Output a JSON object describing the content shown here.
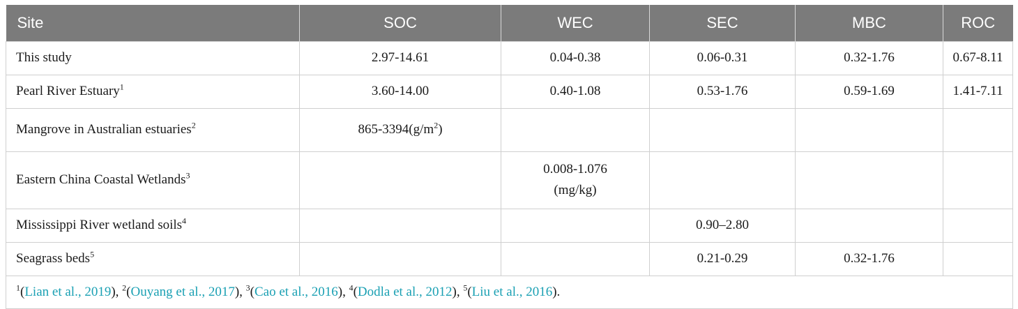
{
  "headers": [
    "Site",
    "SOC",
    "WEC",
    "SEC",
    "MBC",
    "ROC"
  ],
  "rows": [
    {
      "site": "This study",
      "site_sup": "",
      "soc": "2.97-14.61",
      "wec": "0.04-0.38",
      "sec": "0.06-0.31",
      "mbc": "0.32-1.76",
      "roc": "0.67-8.11"
    },
    {
      "site": "Pearl River Estuary",
      "site_sup": "1",
      "soc": "3.60-14.00",
      "wec": "0.40-1.08",
      "sec": "0.53-1.76",
      "mbc": "0.59-1.69",
      "roc": "1.41-7.11"
    },
    {
      "site": "Mangrove in Australian estuaries",
      "site_sup": "2",
      "soc_main": "865-3394(g/m",
      "soc_sup": "2",
      "soc_end": ")",
      "wec": "",
      "sec": "",
      "mbc": "",
      "roc": ""
    },
    {
      "site": "Eastern China Coastal Wetlands",
      "site_sup": "3",
      "soc": "",
      "wec_line1": "0.008-1.076",
      "wec_line2": "(mg/kg)",
      "sec": "",
      "mbc": "",
      "roc": ""
    },
    {
      "site": "Mississippi River wetland soils",
      "site_sup": "4",
      "soc": "",
      "wec": "",
      "sec": "0.90–2.80",
      "mbc": "",
      "roc": ""
    },
    {
      "site": "Seagrass beds",
      "site_sup": "5",
      "soc": "",
      "wec": "",
      "sec": "0.21-0.29",
      "mbc": "0.32-1.76",
      "roc": ""
    }
  ],
  "footnote": {
    "refs": [
      {
        "num": "1",
        "open": "(",
        "cite": "Lian et al., 2019",
        "close": "), "
      },
      {
        "num": "2",
        "open": "(",
        "cite": "Ouyang et al., 2017",
        "close": "), "
      },
      {
        "num": "3",
        "open": "(",
        "cite": "Cao et al., 2016",
        "close": "), "
      },
      {
        "num": "4",
        "open": "(",
        "cite": "Dodla et al., 2012",
        "close": "), "
      },
      {
        "num": "5",
        "open": "(",
        "cite": "Liu et al., 2016",
        "close": ")."
      }
    ]
  },
  "colors": {
    "header_bg": "#7b7b7b",
    "header_text": "#ffffff",
    "border": "#cfcfcf",
    "citation": "#1aa0b3"
  }
}
